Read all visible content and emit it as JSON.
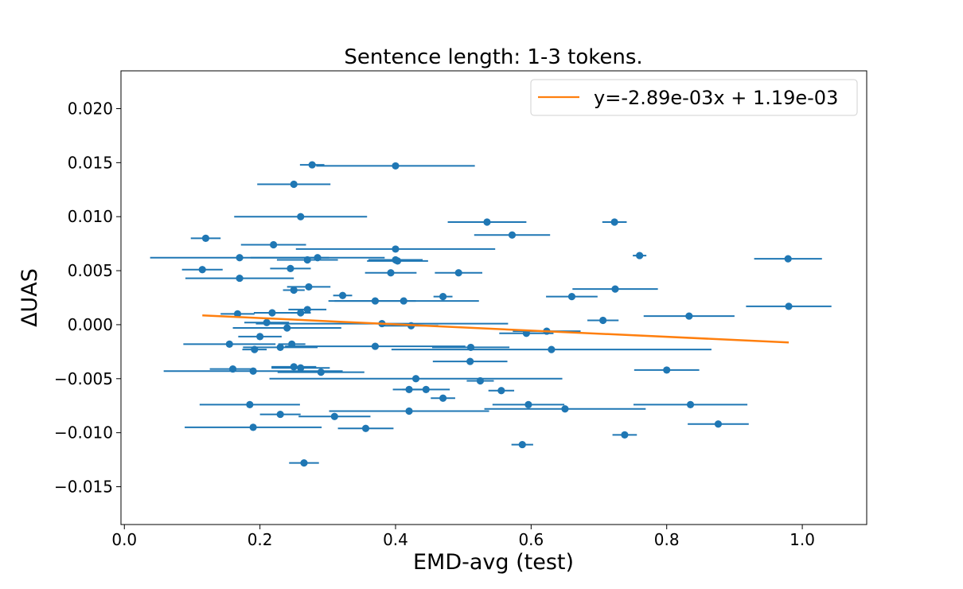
{
  "chart_data": {
    "type": "scatter",
    "title": "Sentence length: 1-3 tokens.",
    "xlabel": "EMD-avg (test)",
    "ylabel": "ΔUAS",
    "xlim": [
      -0.005,
      1.095
    ],
    "ylim": [
      -0.0185,
      0.0235
    ],
    "xticks": [
      0.0,
      0.2,
      0.4,
      0.6,
      0.8,
      1.0
    ],
    "xtick_labels": [
      "0.0",
      "0.2",
      "0.4",
      "0.6",
      "0.8",
      "1.0"
    ],
    "yticks": [
      -0.015,
      -0.01,
      -0.005,
      0.0,
      0.005,
      0.01,
      0.015,
      0.02
    ],
    "ytick_labels": [
      "−0.015",
      "−0.010",
      "−0.005",
      "0.000",
      "0.005",
      "0.010",
      "0.015",
      "0.020"
    ],
    "grid": false,
    "legend_position": "top-right",
    "colors": {
      "points": "#1f77b4",
      "fit": "#ff7f0e"
    },
    "series": [
      {
        "kind": "errorbar",
        "points": [
          {
            "x": 0.277,
            "y": 0.0148,
            "xerr": 0.018
          },
          {
            "x": 0.4,
            "y": 0.0147,
            "xerr": 0.117
          },
          {
            "x": 0.25,
            "y": 0.013,
            "xerr": 0.054
          },
          {
            "x": 0.26,
            "y": 0.01,
            "xerr": 0.098
          },
          {
            "x": 0.535,
            "y": 0.0095,
            "xerr": 0.058
          },
          {
            "x": 0.723,
            "y": 0.0095,
            "xerr": 0.018
          },
          {
            "x": 0.572,
            "y": 0.0083,
            "xerr": 0.056
          },
          {
            "x": 0.12,
            "y": 0.008,
            "xerr": 0.022
          },
          {
            "x": 0.22,
            "y": 0.0074,
            "xerr": 0.048
          },
          {
            "x": 0.4,
            "y": 0.007,
            "xerr": 0.147
          },
          {
            "x": 0.76,
            "y": 0.0064,
            "xerr": 0.01
          },
          {
            "x": 0.17,
            "y": 0.0062,
            "xerr": 0.132
          },
          {
            "x": 0.285,
            "y": 0.0062,
            "xerr": 0.099
          },
          {
            "x": 0.979,
            "y": 0.0061,
            "xerr": 0.05
          },
          {
            "x": 0.27,
            "y": 0.006,
            "xerr": 0.045
          },
          {
            "x": 0.4,
            "y": 0.006,
            "xerr": 0.04
          },
          {
            "x": 0.403,
            "y": 0.0059,
            "xerr": 0.045
          },
          {
            "x": 0.245,
            "y": 0.0052,
            "xerr": 0.03
          },
          {
            "x": 0.115,
            "y": 0.0051,
            "xerr": 0.03
          },
          {
            "x": 0.393,
            "y": 0.0048,
            "xerr": 0.038
          },
          {
            "x": 0.493,
            "y": 0.0048,
            "xerr": 0.035
          },
          {
            "x": 0.17,
            "y": 0.0043,
            "xerr": 0.08
          },
          {
            "x": 0.272,
            "y": 0.0035,
            "xerr": 0.032
          },
          {
            "x": 0.724,
            "y": 0.0033,
            "xerr": 0.063
          },
          {
            "x": 0.25,
            "y": 0.0032,
            "xerr": 0.016
          },
          {
            "x": 0.322,
            "y": 0.0027,
            "xerr": 0.014
          },
          {
            "x": 0.47,
            "y": 0.0026,
            "xerr": 0.014
          },
          {
            "x": 0.66,
            "y": 0.0026,
            "xerr": 0.038
          },
          {
            "x": 0.37,
            "y": 0.0022,
            "xerr": 0.06
          },
          {
            "x": 0.412,
            "y": 0.0022,
            "xerr": 0.111
          },
          {
            "x": 0.98,
            "y": 0.0017,
            "xerr": 0.063
          },
          {
            "x": 0.27,
            "y": 0.0014,
            "xerr": 0.028
          },
          {
            "x": 0.218,
            "y": 0.0011,
            "xerr": 0.027
          },
          {
            "x": 0.26,
            "y": 0.0011,
            "xerr": 0.015
          },
          {
            "x": 0.167,
            "y": 0.001,
            "xerr": 0.025
          },
          {
            "x": 0.833,
            "y": 0.0008,
            "xerr": 0.067
          },
          {
            "x": 0.706,
            "y": 0.0004,
            "xerr": 0.023
          },
          {
            "x": 0.21,
            "y": 0.0002,
            "xerr": 0.033
          },
          {
            "x": 0.38,
            "y": 0.0001,
            "xerr": 0.186
          },
          {
            "x": 0.423,
            "y": -0.0001,
            "xerr": 0.04
          },
          {
            "x": 0.24,
            "y": -0.0003,
            "xerr": 0.08
          },
          {
            "x": 0.623,
            "y": -0.0006,
            "xerr": 0.05
          },
          {
            "x": 0.593,
            "y": -0.0008,
            "xerr": 0.04
          },
          {
            "x": 0.2,
            "y": -0.0011,
            "xerr": 0.032
          },
          {
            "x": 0.155,
            "y": -0.0018,
            "xerr": 0.068
          },
          {
            "x": 0.247,
            "y": -0.0018,
            "xerr": 0.02
          },
          {
            "x": 0.37,
            "y": -0.002,
            "xerr": 0.133
          },
          {
            "x": 0.511,
            "y": -0.0021,
            "xerr": 0.057
          },
          {
            "x": 0.192,
            "y": -0.0023,
            "xerr": 0.018
          },
          {
            "x": 0.23,
            "y": -0.0021,
            "xerr": 0.055
          },
          {
            "x": 0.63,
            "y": -0.0023,
            "xerr": 0.236
          },
          {
            "x": 0.51,
            "y": -0.0034,
            "xerr": 0.055
          },
          {
            "x": 0.25,
            "y": -0.0039,
            "xerr": 0.033
          },
          {
            "x": 0.26,
            "y": -0.004,
            "xerr": 0.043
          },
          {
            "x": 0.16,
            "y": -0.0041,
            "xerr": 0.034
          },
          {
            "x": 0.8,
            "y": -0.0042,
            "xerr": 0.048
          },
          {
            "x": 0.19,
            "y": -0.0043,
            "xerr": 0.132
          },
          {
            "x": 0.29,
            "y": -0.0044,
            "xerr": 0.064
          },
          {
            "x": 0.43,
            "y": -0.005,
            "xerr": 0.216
          },
          {
            "x": 0.525,
            "y": -0.0052,
            "xerr": 0.02
          },
          {
            "x": 0.42,
            "y": -0.006,
            "xerr": 0.024
          },
          {
            "x": 0.445,
            "y": -0.006,
            "xerr": 0.035
          },
          {
            "x": 0.556,
            "y": -0.0061,
            "xerr": 0.019
          },
          {
            "x": 0.47,
            "y": -0.0068,
            "xerr": 0.018
          },
          {
            "x": 0.185,
            "y": -0.0074,
            "xerr": 0.074
          },
          {
            "x": 0.596,
            "y": -0.0074,
            "xerr": 0.053
          },
          {
            "x": 0.835,
            "y": -0.0074,
            "xerr": 0.084
          },
          {
            "x": 0.65,
            "y": -0.0078,
            "xerr": 0.119
          },
          {
            "x": 0.42,
            "y": -0.008,
            "xerr": 0.118
          },
          {
            "x": 0.23,
            "y": -0.0083,
            "xerr": 0.03
          },
          {
            "x": 0.31,
            "y": -0.0085,
            "xerr": 0.053
          },
          {
            "x": 0.876,
            "y": -0.0092,
            "xerr": 0.045
          },
          {
            "x": 0.19,
            "y": -0.0095,
            "xerr": 0.101
          },
          {
            "x": 0.356,
            "y": -0.0096,
            "xerr": 0.041
          },
          {
            "x": 0.738,
            "y": -0.0102,
            "xerr": 0.018
          },
          {
            "x": 0.587,
            "y": -0.0111,
            "xerr": 0.016
          },
          {
            "x": 0.265,
            "y": -0.0128,
            "xerr": 0.022
          }
        ]
      },
      {
        "kind": "line",
        "name": "y=-2.89e-03x + 1.19e-03",
        "slope": -0.00289,
        "intercept": 0.00119,
        "x_range": [
          0.115,
          0.98
        ]
      }
    ]
  }
}
